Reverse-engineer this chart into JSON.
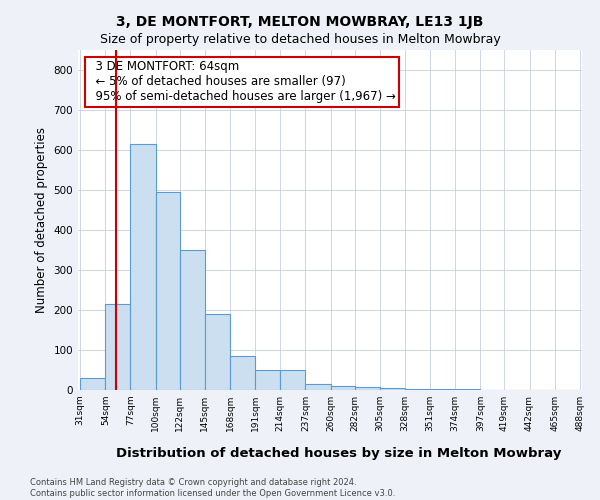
{
  "title": "3, DE MONTFORT, MELTON MOWBRAY, LE13 1JB",
  "subtitle": "Size of property relative to detached houses in Melton Mowbray",
  "xlabel": "Distribution of detached houses by size in Melton Mowbray",
  "ylabel": "Number of detached properties",
  "footer": "Contains HM Land Registry data © Crown copyright and database right 2024.\nContains public sector information licensed under the Open Government Licence v3.0.",
  "bar_edges": [
    31,
    54,
    77,
    100,
    122,
    145,
    168,
    191,
    214,
    237,
    260,
    282,
    305,
    328,
    351,
    374,
    397,
    419,
    442,
    465,
    488
  ],
  "bar_heights": [
    30,
    215,
    615,
    495,
    350,
    190,
    85,
    50,
    50,
    15,
    10,
    7,
    5,
    3,
    3,
    2,
    1,
    0,
    0,
    0
  ],
  "bar_color": "#ccdff0",
  "bar_edge_color": "#5b9bd5",
  "vline_x": 64,
  "vline_color": "#cc0000",
  "annotation_text": "  3 DE MONTFORT: 64sqm\n  ← 5% of detached houses are smaller (97)\n  95% of semi-detached houses are larger (1,967) →",
  "annotation_fontsize": 8.5,
  "annotation_box_color": "#ffffff",
  "annotation_box_edgecolor": "#cc0000",
  "ylim": [
    0,
    850
  ],
  "yticks": [
    0,
    100,
    200,
    300,
    400,
    500,
    600,
    700,
    800
  ],
  "title_fontsize": 10,
  "subtitle_fontsize": 9,
  "xlabel_fontsize": 9.5,
  "ylabel_fontsize": 8.5,
  "tick_labels": [
    "31sqm",
    "54sqm",
    "77sqm",
    "100sqm",
    "122sqm",
    "145sqm",
    "168sqm",
    "191sqm",
    "214sqm",
    "237sqm",
    "260sqm",
    "282sqm",
    "305sqm",
    "328sqm",
    "351sqm",
    "374sqm",
    "397sqm",
    "419sqm",
    "442sqm",
    "465sqm",
    "488sqm"
  ],
  "bg_color": "#eef2f8",
  "plot_bg_color": "#ffffff",
  "grid_color": "#c8d0dc"
}
